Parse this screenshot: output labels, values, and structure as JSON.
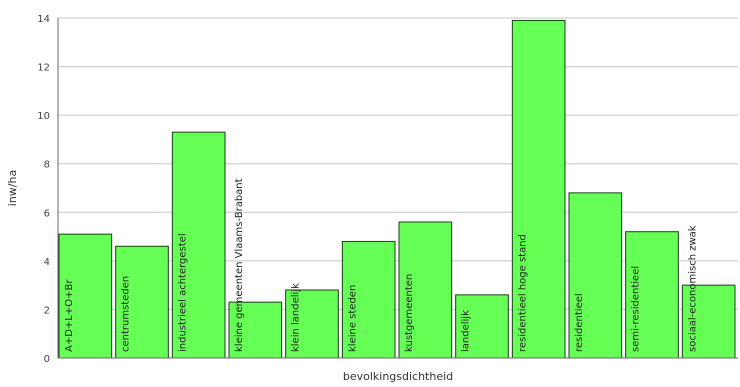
{
  "chart_data": {
    "type": "bar",
    "title": "",
    "xlabel": "bevolkingsdichtheid",
    "ylabel": "inw/ha",
    "ylim": [
      0,
      14
    ],
    "yticks": [
      0,
      2,
      4,
      6,
      8,
      10,
      12,
      14
    ],
    "grid": true,
    "categories": [
      "A+D+L+O+Br",
      "centrumsteden",
      "industrieel achtergestel",
      "kleine gemeenten Vlaams-Brabant",
      "klein landelijk",
      "kleine steden",
      "kustgemeenten",
      "landelijk",
      "residentieel hoge stand",
      "residentieel",
      "semi-residentieel",
      "sociaal-economisch zwak"
    ],
    "values": [
      5.1,
      4.6,
      9.3,
      2.3,
      2.8,
      4.8,
      5.6,
      2.6,
      13.9,
      6.8,
      5.2,
      3.0
    ],
    "colors": {
      "bar_fill": "#66ff55",
      "bar_stroke": "#1a3d1a",
      "grid": "#c8c8c8",
      "axis": "#6a6a6a"
    }
  }
}
